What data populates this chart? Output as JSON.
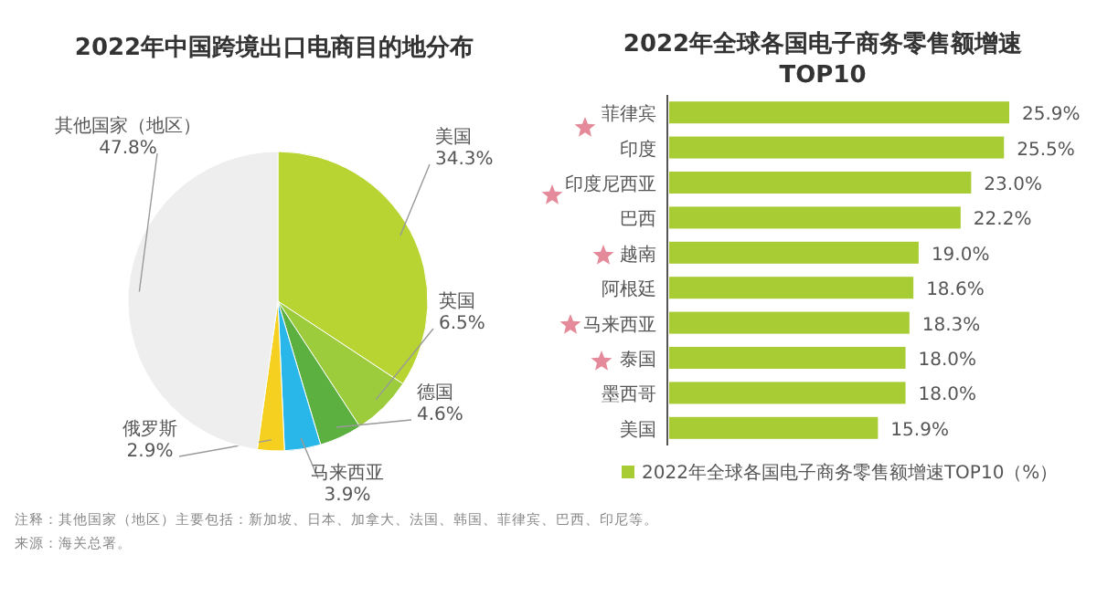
{
  "chart_data": [
    {
      "type": "pie",
      "title": "2022年中国跨境出口电商目的地分布",
      "categories": [
        "美国",
        "英国",
        "德国",
        "马来西亚",
        "俄罗斯",
        "其他国家（地区）"
      ],
      "values": [
        34.3,
        6.5,
        4.6,
        3.9,
        2.9,
        47.8
      ],
      "value_labels": [
        "34.3%",
        "6.5%",
        "4.6%",
        "3.9%",
        "2.9%",
        "47.8%"
      ],
      "colors": [
        "#b8d432",
        "#9ccc3c",
        "#5cb040",
        "#29b6e8",
        "#f5d020",
        "#eeeeee"
      ],
      "annotations": [
        "注释：其他国家（地区）主要包括：新加坡、日本、加拿大、法国、韩国、菲律宾、巴西、印尼等。",
        "来源：海关总署。"
      ]
    },
    {
      "type": "bar",
      "orientation": "horizontal",
      "title": "2022年全球各国电子商务零售额增速",
      "subtitle": "TOP10",
      "categories": [
        "菲律宾",
        "印度",
        "印度尼西亚",
        "巴西",
        "越南",
        "阿根廷",
        "马来西亚",
        "泰国",
        "墨西哥",
        "美国"
      ],
      "series": [
        {
          "name": "2022年全球各国电子商务零售额增速TOP10（%）",
          "color": "#a8cc34",
          "values": [
            25.9,
            25.5,
            23.0,
            22.2,
            19.0,
            18.6,
            18.3,
            18.0,
            18.0,
            15.9
          ],
          "value_labels": [
            "25.9%",
            "25.5%",
            "23.0%",
            "22.2%",
            "19.0%",
            "18.6%",
            "18.3%",
            "18.0%",
            "18.0%",
            "15.9%"
          ]
        }
      ],
      "legend": "bottom"
    }
  ]
}
